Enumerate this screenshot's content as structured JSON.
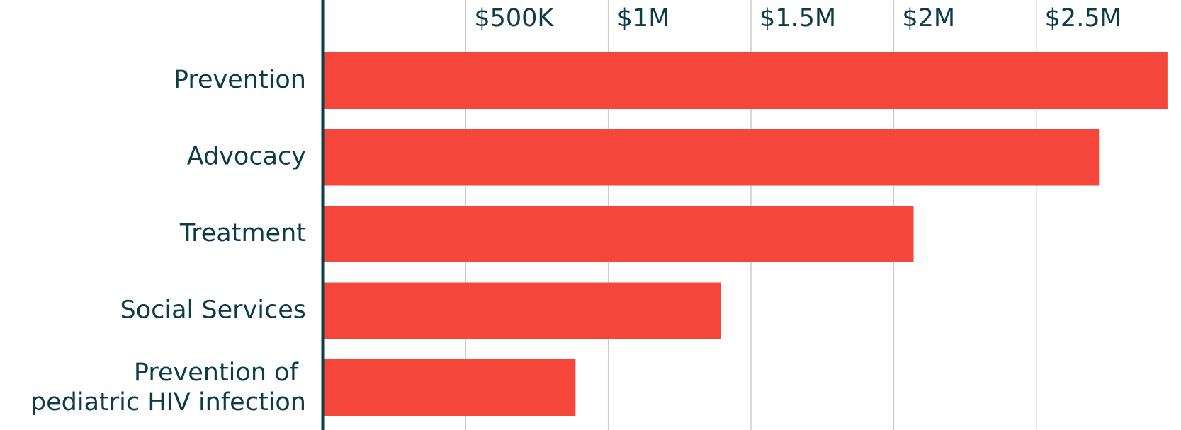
{
  "chart_data": {
    "type": "bar",
    "orientation": "horizontal",
    "categories": [
      "Prevention",
      "Advocacy",
      "Treatment",
      "Social Services",
      "Prevention of pediatric HIV infection"
    ],
    "values": [
      2960000,
      2720000,
      2070000,
      1395000,
      885000
    ],
    "color": "#f4463b",
    "xlim": [
      0,
      3000000
    ],
    "xticks": [
      {
        "value": 500000,
        "label": "$500K"
      },
      {
        "value": 1000000,
        "label": "$1M"
      },
      {
        "value": 1500000,
        "label": "$1.5M"
      },
      {
        "value": 2000000,
        "label": "$2M"
      },
      {
        "value": 2500000,
        "label": "$2.5M"
      }
    ],
    "grid": true
  }
}
